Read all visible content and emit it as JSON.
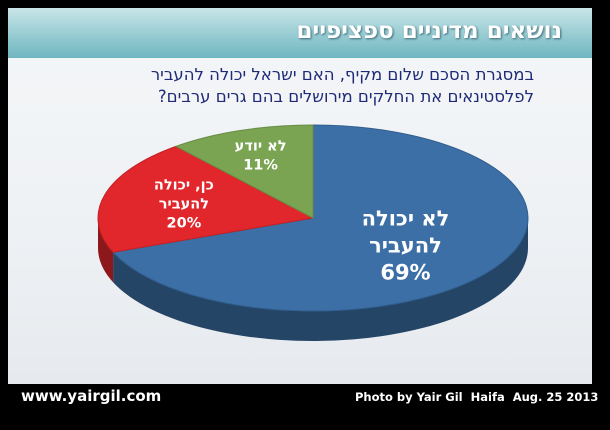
{
  "header": {
    "title": "נושאים מדיניים ספציפיים"
  },
  "question": {
    "line1": "במסגרת הסכם שלום מקיף, האם ישראל יכולה להעביר",
    "line2": "לפלסטינאים את החלקים מירושלים בהם גרים ערבים?"
  },
  "chart_data": {
    "type": "pie",
    "title": "",
    "slices": [
      {
        "label_lines": [
          "לא יכולה",
          "להעביר"
        ],
        "value": 69,
        "value_label": "69%",
        "color": "#3b6fa6"
      },
      {
        "label_lines": [
          "כן, יכולה",
          "להעביר"
        ],
        "value": 20,
        "value_label": "20%",
        "color": "#e2272c"
      },
      {
        "label_lines": [
          "לא יודע"
        ],
        "value": 11,
        "value_label": "11%",
        "color": "#7aa451"
      }
    ],
    "legend": "none"
  },
  "footer": {
    "site": "www.yairgil.com",
    "credit": "Photo by Yair Gil",
    "location": "Haifa",
    "date": "Aug. 25 2013"
  }
}
